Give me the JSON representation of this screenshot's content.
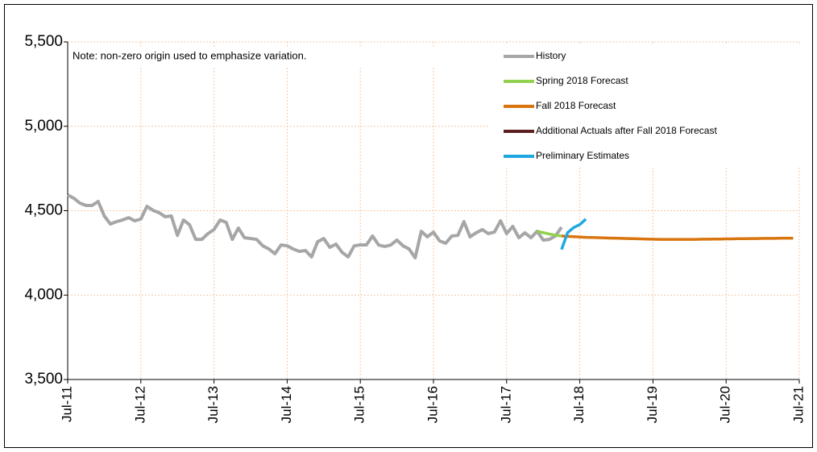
{
  "chart_data": {
    "type": "line",
    "annotations": [
      "Note: non-zero origin used to emphasize variation."
    ],
    "xlim": [
      "2011-07",
      "2021-07"
    ],
    "xticks": [
      {
        "value": "2011-07",
        "label": "Jul-11"
      },
      {
        "value": "2012-07",
        "label": "Jul-12"
      },
      {
        "value": "2013-07",
        "label": "Jul-13"
      },
      {
        "value": "2014-07",
        "label": "Jul-14"
      },
      {
        "value": "2015-07",
        "label": "Jul-15"
      },
      {
        "value": "2016-07",
        "label": "Jul-16"
      },
      {
        "value": "2017-07",
        "label": "Jul-17"
      },
      {
        "value": "2018-07",
        "label": "Jul-18"
      },
      {
        "value": "2019-07",
        "label": "Jul-19"
      },
      {
        "value": "2020-07",
        "label": "Jul-20"
      },
      {
        "value": "2021-07",
        "label": "Jul-21"
      }
    ],
    "ylim": [
      3500,
      5500
    ],
    "yticks": [
      {
        "value": 3500,
        "label": "3,500"
      },
      {
        "value": 4000,
        "label": "4,000"
      },
      {
        "value": 4500,
        "label": "4,500"
      },
      {
        "value": 5000,
        "label": "5,000"
      },
      {
        "value": 5500,
        "label": "5,500"
      }
    ],
    "grid": true,
    "legend": "top-right",
    "series": [
      {
        "name": "History",
        "color": "#a6a6a6",
        "x": [
          "2011-07",
          "2011-08",
          "2011-09",
          "2011-10",
          "2011-11",
          "2011-12",
          "2012-01",
          "2012-02",
          "2012-03",
          "2012-04",
          "2012-05",
          "2012-06",
          "2012-07",
          "2012-08",
          "2012-09",
          "2012-10",
          "2012-11",
          "2012-12",
          "2013-01",
          "2013-02",
          "2013-03",
          "2013-04",
          "2013-05",
          "2013-06",
          "2013-07",
          "2013-08",
          "2013-09",
          "2013-10",
          "2013-11",
          "2013-12",
          "2014-01",
          "2014-02",
          "2014-03",
          "2014-04",
          "2014-05",
          "2014-06",
          "2014-07",
          "2014-08",
          "2014-09",
          "2014-10",
          "2014-11",
          "2014-12",
          "2015-01",
          "2015-02",
          "2015-03",
          "2015-04",
          "2015-05",
          "2015-06",
          "2015-07",
          "2015-08",
          "2015-09",
          "2015-10",
          "2015-11",
          "2015-12",
          "2016-01",
          "2016-02",
          "2016-03",
          "2016-04",
          "2016-05",
          "2016-06",
          "2016-07",
          "2016-08",
          "2016-09",
          "2016-10",
          "2016-11",
          "2016-12",
          "2017-01",
          "2017-02",
          "2017-03",
          "2017-04",
          "2017-05",
          "2017-06",
          "2017-07",
          "2017-08",
          "2017-09",
          "2017-10",
          "2017-11",
          "2017-12",
          "2018-01",
          "2018-02",
          "2018-03",
          "2018-04"
        ],
        "values": [
          4593,
          4574,
          4545,
          4531,
          4531,
          4555,
          4469,
          4421,
          4435,
          4445,
          4459,
          4440,
          4450,
          4526,
          4502,
          4488,
          4464,
          4469,
          4354,
          4445,
          4416,
          4330,
          4330,
          4364,
          4388,
          4445,
          4431,
          4330,
          4397,
          4340,
          4335,
          4330,
          4292,
          4273,
          4245,
          4297,
          4292,
          4273,
          4259,
          4264,
          4226,
          4316,
          4335,
          4283,
          4302,
          4254,
          4226,
          4292,
          4297,
          4297,
          4350,
          4297,
          4288,
          4297,
          4326,
          4292,
          4273,
          4221,
          4378,
          4345,
          4373,
          4321,
          4307,
          4350,
          4354,
          4435,
          4345,
          4369,
          4388,
          4364,
          4373,
          4440,
          4364,
          4407,
          4340,
          4369,
          4340,
          4378,
          4326,
          4330,
          4350,
          4402
        ]
      },
      {
        "name": "Spring 2018 Forecast",
        "color": "#92d050",
        "x": [
          "2017-12",
          "2018-01",
          "2018-02",
          "2018-03",
          "2018-04"
        ],
        "values": [
          4378,
          4370,
          4362,
          4355,
          4350
        ]
      },
      {
        "name": "Fall 2018 Forecast",
        "color": "#d9750f",
        "x": [
          "2018-04",
          "2018-05",
          "2018-06",
          "2018-07",
          "2018-08",
          "2018-09",
          "2018-10",
          "2018-11",
          "2018-12",
          "2019-01",
          "2019-02",
          "2019-03",
          "2019-04",
          "2019-05",
          "2019-06",
          "2019-07",
          "2019-08",
          "2019-09",
          "2019-10",
          "2019-11",
          "2019-12",
          "2020-01",
          "2020-02",
          "2020-03",
          "2020-04",
          "2020-05",
          "2020-06",
          "2020-07",
          "2020-08",
          "2020-09",
          "2020-10",
          "2020-11",
          "2020-12",
          "2021-01",
          "2021-02",
          "2021-03",
          "2021-04",
          "2021-05",
          "2021-06"
        ],
        "values": [
          4350,
          4348,
          4346,
          4344,
          4342,
          4341,
          4340,
          4339,
          4338,
          4337,
          4336,
          4335,
          4334,
          4333,
          4332,
          4331,
          4330,
          4330,
          4330,
          4330,
          4330,
          4330,
          4330,
          4331,
          4331,
          4332,
          4332,
          4333,
          4333,
          4334,
          4334,
          4335,
          4335,
          4336,
          4336,
          4336,
          4337,
          4337,
          4337
        ]
      },
      {
        "name": "Additional Actuals after Fall 2018 Forecast",
        "color": "#5c1f1f",
        "x": [],
        "values": []
      },
      {
        "name": "Preliminary Estimates",
        "color": "#1fa8e0",
        "x": [
          "2018-04",
          "2018-05",
          "2018-06",
          "2018-07",
          "2018-08"
        ],
        "values": [
          4270,
          4370,
          4400,
          4418,
          4450
        ]
      }
    ]
  }
}
